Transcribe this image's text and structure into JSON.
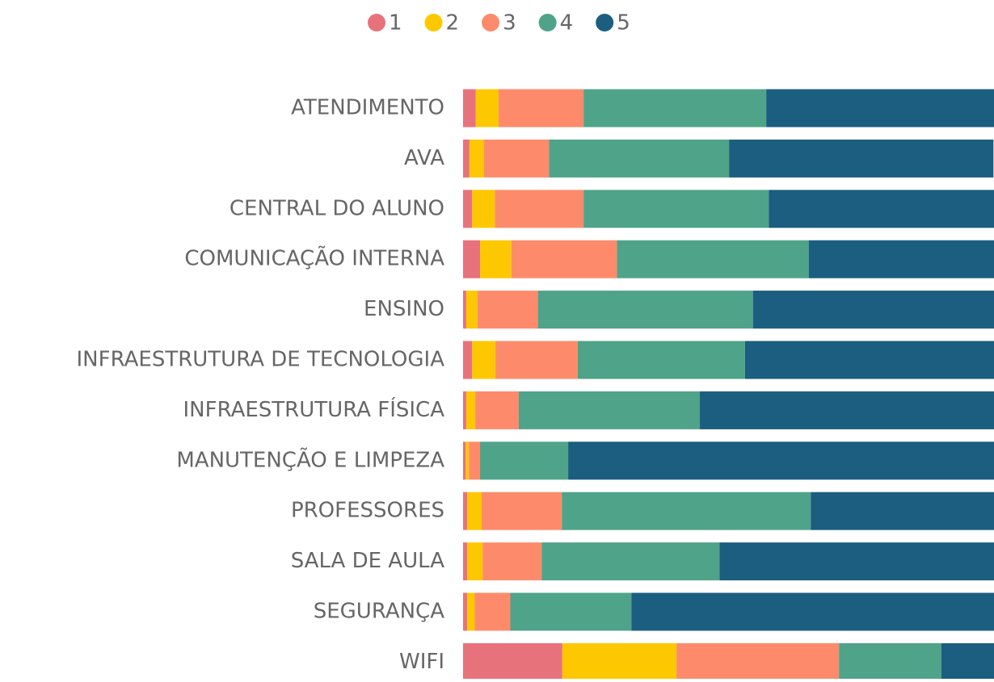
{
  "chart_data": {
    "type": "stacked-bar-horizontal",
    "categories": [
      "ATENDIMENTO",
      "AVA",
      "CENTRAL DO ALUNO",
      "COMUNICAÇÃO INTERNA",
      "ENSINO",
      "INFRAESTRUTURA DE TECNOLOGIA",
      "INFRAESTRUTURA FÍSICA",
      "MANUTENÇÃO E LIMPEZA",
      "PROFESSORES",
      "SALA DE AULA",
      "SEGURANÇA",
      "WIFI"
    ],
    "series": [
      {
        "name": "1",
        "color": "#e8727b",
        "values": [
          2.4,
          1.2,
          1.7,
          3.2,
          0.6,
          1.7,
          0.6,
          0.5,
          0.8,
          0.8,
          0.8,
          18.7
        ]
      },
      {
        "name": "2",
        "color": "#fdc800",
        "values": [
          4.3,
          2.7,
          4.3,
          5.9,
          2.1,
          4.4,
          1.7,
          0.6,
          2.7,
          2.9,
          1.4,
          21.5
        ]
      },
      {
        "name": "3",
        "color": "#fd8b6b",
        "values": [
          16.0,
          12.3,
          16.7,
          19.9,
          11.4,
          15.5,
          8.2,
          2.1,
          15.1,
          11.1,
          6.7,
          30.6
        ]
      },
      {
        "name": "4",
        "color": "#4fa389",
        "values": [
          34.4,
          33.9,
          34.9,
          36.1,
          40.5,
          31.5,
          34.1,
          16.6,
          46.9,
          33.5,
          22.8,
          19.3
        ]
      },
      {
        "name": "5",
        "color": "#1b5e80",
        "values": [
          42.9,
          49.8,
          42.5,
          34.9,
          45.4,
          46.9,
          55.4,
          80.2,
          34.5,
          51.7,
          68.3,
          9.9
        ]
      }
    ],
    "xlim": [
      0,
      100
    ],
    "legend": "top"
  }
}
